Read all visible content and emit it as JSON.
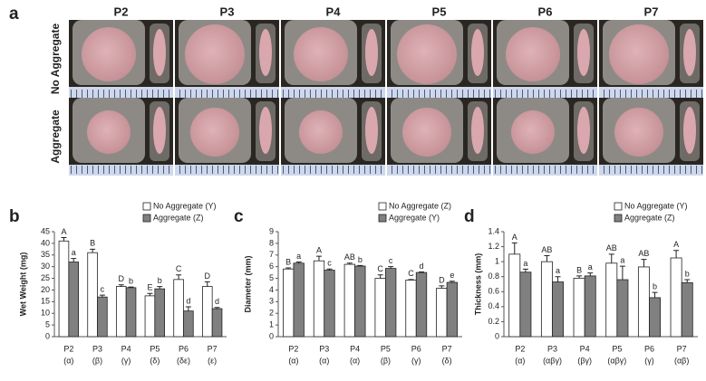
{
  "panel_a": {
    "label": "a",
    "columns": [
      "P2",
      "P3",
      "P4",
      "P5",
      "P6",
      "P7"
    ],
    "rows": [
      "No Aggregate",
      "Aggregate"
    ]
  },
  "chart_data": [
    {
      "type": "bar",
      "panel_label": "b",
      "ylabel": "Wet Weight (mg)",
      "categories": [
        "P2",
        "P3",
        "P4",
        "P5",
        "P6",
        "P7"
      ],
      "category_sublabels": [
        "(α)",
        "(β)",
        "(γ)",
        "(δ)",
        "(δε)",
        "(ε)"
      ],
      "ylim": [
        0,
        45
      ],
      "yticks": [
        0,
        5,
        10,
        15,
        20,
        25,
        30,
        35,
        40,
        45
      ],
      "legend": "upper-right",
      "series": [
        {
          "name": "No Aggregate (Y)",
          "color": "#ffffff",
          "values": [
            41,
            36,
            21.5,
            17.5,
            24.5,
            21.5
          ],
          "errors": [
            1.5,
            1.5,
            0.7,
            1,
            2,
            2
          ],
          "letters": [
            "A",
            "B",
            "D",
            "E",
            "C",
            "D"
          ]
        },
        {
          "name": "Aggregate (Z)",
          "color": "#808080",
          "values": [
            32,
            17,
            21,
            20.5,
            11,
            12
          ],
          "errors": [
            1.5,
            0.8,
            0.3,
            1,
            1.8,
            0.5
          ],
          "letters": [
            "a",
            "c",
            "b",
            "b",
            "d",
            "d"
          ]
        }
      ]
    },
    {
      "type": "bar",
      "panel_label": "c",
      "ylabel": "Diameter (mm)",
      "categories": [
        "P2",
        "P3",
        "P4",
        "P5",
        "P6",
        "P7"
      ],
      "category_sublabels": [
        "(α)",
        "(α)",
        "(α)",
        "(β)",
        "(γ)",
        "(δ)"
      ],
      "ylim": [
        0,
        9
      ],
      "yticks": [
        0,
        1,
        2,
        3,
        4,
        5,
        6,
        7,
        8,
        9
      ],
      "legend": "upper-right",
      "series": [
        {
          "name": "No Aggregate (Z)",
          "color": "#ffffff",
          "values": [
            5.8,
            6.5,
            6.2,
            5.0,
            4.85,
            4.15
          ],
          "errors": [
            0.1,
            0.4,
            0.1,
            0.3,
            0.05,
            0.2
          ],
          "letters": [
            "B",
            "A",
            "AB",
            "C",
            "C",
            "D"
          ]
        },
        {
          "name": "Aggregate (Y)",
          "color": "#808080",
          "values": [
            6.3,
            5.7,
            6.05,
            5.85,
            5.5,
            4.65
          ],
          "errors": [
            0.1,
            0.1,
            0.05,
            0.15,
            0.05,
            0.1
          ],
          "letters": [
            "a",
            "c",
            "b",
            "c",
            "d",
            "e"
          ]
        }
      ]
    },
    {
      "type": "bar",
      "panel_label": "d",
      "ylabel": "Thickness (mm)",
      "categories": [
        "P2",
        "P3",
        "P4",
        "P5",
        "P6",
        "P7"
      ],
      "category_sublabels": [
        "(α)",
        "(αβγ)",
        "(βγ)",
        "(αβγ)",
        "(γ)",
        "(αβ)"
      ],
      "ylim": [
        0,
        1.4
      ],
      "yticks": [
        0,
        0.2,
        0.4,
        0.6,
        0.8,
        1,
        1.2,
        1.4
      ],
      "legend": "upper-right",
      "series": [
        {
          "name": "No Aggregate (Y)",
          "color": "#ffffff",
          "values": [
            1.1,
            1.0,
            0.78,
            0.98,
            0.93,
            1.05
          ],
          "errors": [
            0.15,
            0.08,
            0.03,
            0.12,
            0.1,
            0.1
          ],
          "letters": [
            "A",
            "AB",
            "B",
            "AB",
            "AB",
            "A"
          ]
        },
        {
          "name": "Aggregate (Z)",
          "color": "#808080",
          "values": [
            0.86,
            0.73,
            0.81,
            0.76,
            0.52,
            0.72
          ],
          "errors": [
            0.04,
            0.07,
            0.04,
            0.18,
            0.07,
            0.04
          ],
          "letters": [
            "a",
            "a",
            "a",
            "a",
            "b",
            "b"
          ]
        }
      ]
    }
  ]
}
